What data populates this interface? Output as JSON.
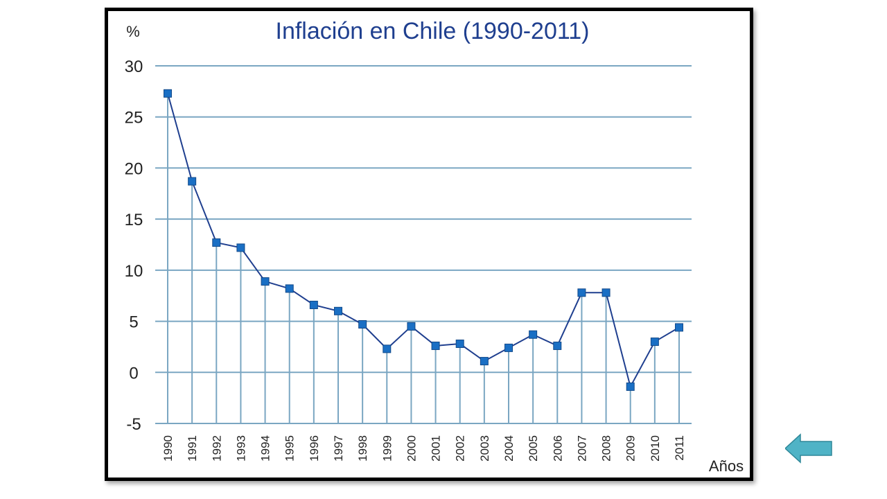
{
  "chart_data": {
    "type": "line",
    "title": "Inflación en Chile (1990-2011)",
    "ylabel": "%",
    "xlabel": "Años",
    "ylim": [
      -5,
      30
    ],
    "yticks": [
      30,
      25,
      20,
      15,
      10,
      5,
      0,
      -5
    ],
    "grid": true,
    "categories": [
      "1990",
      "1991",
      "1992",
      "1993",
      "1994",
      "1995",
      "1996",
      "1997",
      "1998",
      "1999",
      "2000",
      "2001",
      "2002",
      "2003",
      "2004",
      "2005",
      "2006",
      "2007",
      "2008",
      "2009",
      "2010",
      "2011"
    ],
    "values": [
      27.3,
      18.7,
      12.7,
      12.2,
      8.9,
      8.2,
      6.6,
      6.0,
      4.7,
      2.3,
      4.5,
      2.6,
      2.8,
      1.1,
      2.4,
      3.7,
      2.6,
      7.8,
      7.8,
      -1.4,
      3.0,
      4.4
    ],
    "colors": {
      "line": "#1f3f8f",
      "marker": "#1a6fc4",
      "grid": "#7aa6c2",
      "title": "#1f3f8f"
    }
  },
  "nav": {
    "back_icon": "back-arrow-icon",
    "back_color": "#4fb3c6"
  }
}
